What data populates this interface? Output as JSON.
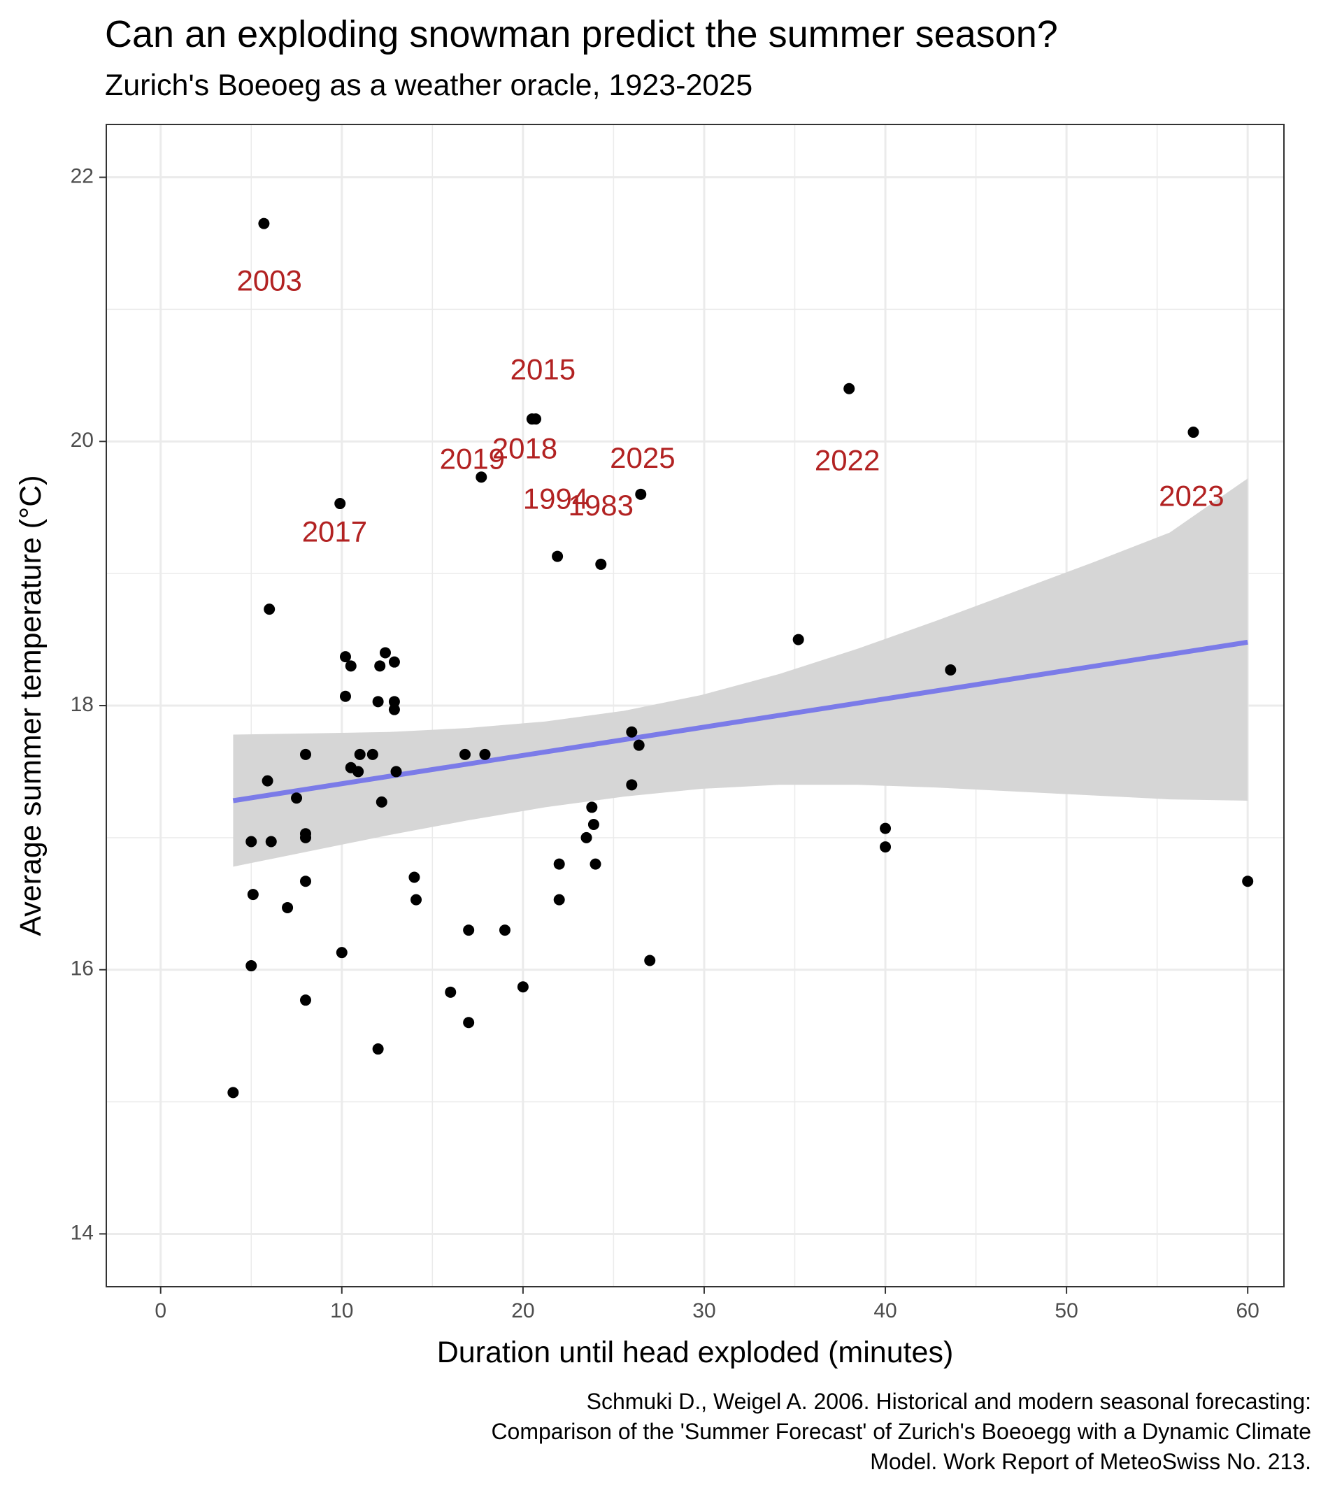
{
  "title": "Can an exploding snowman predict the summer season?",
  "subtitle": "Zurich's Boeoeg as a weather oracle, 1923-2025",
  "caption": [
    "Schmuki D., Weigel A. 2006. Historical and modern seasonal forecasting:",
    "Comparison of the 'Summer Forecast' of Zurich's Boeoegg with a Dynamic Climate",
    "Model. Work Report of MeteoSwiss No. 213."
  ],
  "chart_data": {
    "type": "scatter",
    "xlabel": "Duration until head exploded (minutes)",
    "ylabel": "Average summer temperature (°C)",
    "xlim": [
      -3,
      62
    ],
    "ylim": [
      13.6,
      22.4
    ],
    "x_ticks": [
      0,
      10,
      20,
      30,
      40,
      50,
      60
    ],
    "y_ticks": [
      14,
      16,
      18,
      20,
      22
    ],
    "grid": true,
    "colors": {
      "points": "#000000",
      "trend_line": "#7b7be8",
      "confidence_band": "#d6d6d6",
      "labels": "#b22222",
      "grid": "#ebebeb",
      "panel_border": "#333333"
    },
    "points": [
      [
        5.7,
        21.65
      ],
      [
        20.5,
        20.17
      ],
      [
        20.7,
        20.17
      ],
      [
        38,
        20.4
      ],
      [
        57,
        20.07
      ],
      [
        17.7,
        19.73
      ],
      [
        26.5,
        19.6
      ],
      [
        9.9,
        19.53
      ],
      [
        21.9,
        19.13
      ],
      [
        24.3,
        19.07
      ],
      [
        6,
        18.73
      ],
      [
        35.2,
        18.5
      ],
      [
        43.6,
        18.27
      ],
      [
        10.2,
        18.37
      ],
      [
        10.5,
        18.3
      ],
      [
        12.4,
        18.4
      ],
      [
        12.1,
        18.3
      ],
      [
        12.9,
        18.33
      ],
      [
        10.2,
        18.07
      ],
      [
        12,
        18.03
      ],
      [
        12.9,
        18.03
      ],
      [
        12.9,
        17.97
      ],
      [
        26,
        17.8
      ],
      [
        26.4,
        17.7
      ],
      [
        8,
        17.63
      ],
      [
        11,
        17.63
      ],
      [
        11.7,
        17.63
      ],
      [
        16.8,
        17.63
      ],
      [
        17.9,
        17.63
      ],
      [
        10.5,
        17.53
      ],
      [
        10.9,
        17.5
      ],
      [
        13,
        17.5
      ],
      [
        5.9,
        17.43
      ],
      [
        26,
        17.4
      ],
      [
        7.5,
        17.3
      ],
      [
        12.2,
        17.27
      ],
      [
        23.8,
        17.23
      ],
      [
        23.9,
        17.1
      ],
      [
        40,
        17.07
      ],
      [
        23.5,
        17
      ],
      [
        8,
        17.03
      ],
      [
        8,
        17
      ],
      [
        5,
        16.97
      ],
      [
        6.1,
        16.97
      ],
      [
        40,
        16.93
      ],
      [
        22,
        16.8
      ],
      [
        24,
        16.8
      ],
      [
        14,
        16.7
      ],
      [
        8,
        16.67
      ],
      [
        60,
        16.67
      ],
      [
        5.1,
        16.57
      ],
      [
        14.1,
        16.53
      ],
      [
        22,
        16.53
      ],
      [
        7,
        16.47
      ],
      [
        17,
        16.3
      ],
      [
        19,
        16.3
      ],
      [
        10,
        16.13
      ],
      [
        27,
        16.07
      ],
      [
        5,
        16.03
      ],
      [
        20,
        15.87
      ],
      [
        16,
        15.83
      ],
      [
        8,
        15.77
      ],
      [
        17,
        15.6
      ],
      [
        12,
        15.4
      ],
      [
        4,
        15.07
      ]
    ],
    "trend": {
      "x": [
        4,
        60
      ],
      "y": [
        17.28,
        18.48
      ],
      "band_lower": [
        16.78,
        16.9,
        17.02,
        17.13,
        17.23,
        17.31,
        17.37,
        17.4,
        17.4,
        17.38,
        17.35,
        17.32,
        17.29,
        17.28
      ],
      "band_upper": [
        17.78,
        17.79,
        17.8,
        17.83,
        17.88,
        17.96,
        18.08,
        18.24,
        18.43,
        18.64,
        18.86,
        19.08,
        19.31,
        19.72
      ]
    },
    "annotations": [
      {
        "label": "2003",
        "x": 6.0,
        "y": 21.2
      },
      {
        "label": "2015",
        "x": 21.1,
        "y": 20.53
      },
      {
        "label": "2019",
        "x": 17.2,
        "y": 19.85
      },
      {
        "label": "2018",
        "x": 20.1,
        "y": 19.93
      },
      {
        "label": "2025",
        "x": 26.6,
        "y": 19.86
      },
      {
        "label": "2022",
        "x": 37.9,
        "y": 19.84
      },
      {
        "label": "2017",
        "x": 9.6,
        "y": 19.3
      },
      {
        "label": "1994",
        "x": 21.8,
        "y": 19.55
      },
      {
        "label": "1983",
        "x": 24.3,
        "y": 19.5
      },
      {
        "label": "2023",
        "x": 56.9,
        "y": 19.57
      }
    ]
  }
}
